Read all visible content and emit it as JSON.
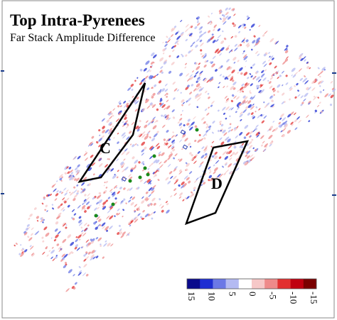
{
  "title": "Top Intra-Pyrenees",
  "subtitle": "Far Stack Amplitude Difference",
  "zones": [
    {
      "label": "C"
    },
    {
      "label": "D"
    }
  ],
  "colorbar": {
    "colors": [
      "#0a0a8c",
      "#1e2ed2",
      "#6b78e6",
      "#b4baf2",
      "#ffffff",
      "#f6c8c8",
      "#ee8a8a",
      "#e23030",
      "#c00010",
      "#7a0000"
    ],
    "ticks": [
      15,
      10,
      5,
      0,
      -5,
      -10,
      -15
    ]
  }
}
